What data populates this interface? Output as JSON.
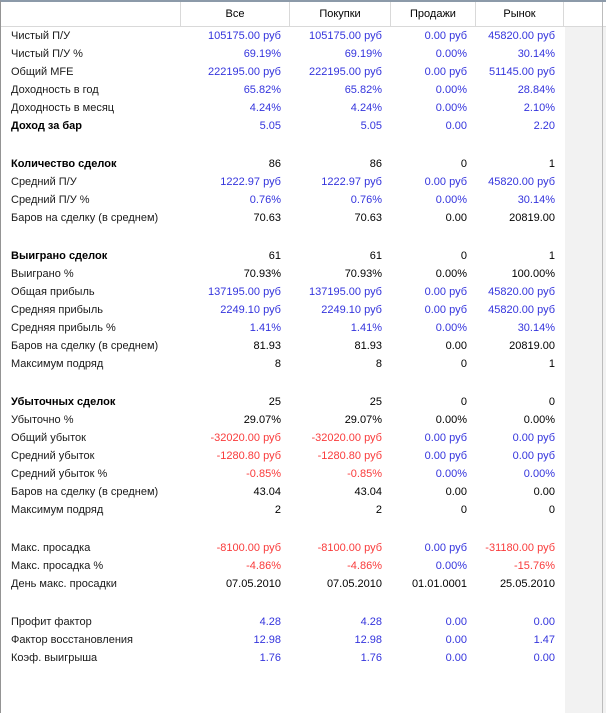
{
  "header": {
    "columns": [
      "Все",
      "Покупки",
      "Продажи",
      "Рынок"
    ]
  },
  "value_colors": {
    "b": "#3434dd",
    "r": "#f93b3b",
    "k": "#000000"
  },
  "sections": [
    {
      "rows": [
        {
          "label": "Чистый П/У",
          "bold": false,
          "values": [
            "105175.00 руб",
            "105175.00 руб",
            "0.00 руб",
            "45820.00 руб"
          ],
          "colors": [
            "b",
            "b",
            "b",
            "b"
          ]
        },
        {
          "label": "Чистый П/У %",
          "bold": false,
          "values": [
            "69.19%",
            "69.19%",
            "0.00%",
            "30.14%"
          ],
          "colors": [
            "b",
            "b",
            "b",
            "b"
          ]
        },
        {
          "label": "Общий MFE",
          "bold": false,
          "values": [
            "222195.00 руб",
            "222195.00 руб",
            "0.00 руб",
            "51145.00 руб"
          ],
          "colors": [
            "b",
            "b",
            "b",
            "b"
          ]
        },
        {
          "label": "Доходность в год",
          "bold": false,
          "values": [
            "65.82%",
            "65.82%",
            "0.00%",
            "28.84%"
          ],
          "colors": [
            "b",
            "b",
            "b",
            "b"
          ]
        },
        {
          "label": "Доходность в месяц",
          "bold": false,
          "values": [
            "4.24%",
            "4.24%",
            "0.00%",
            "2.10%"
          ],
          "colors": [
            "b",
            "b",
            "b",
            "b"
          ]
        },
        {
          "label": "Доход за бар",
          "bold": true,
          "values": [
            "5.05",
            "5.05",
            "0.00",
            "2.20"
          ],
          "colors": [
            "b",
            "b",
            "b",
            "b"
          ]
        }
      ]
    },
    {
      "rows": [
        {
          "label": "Количество сделок",
          "bold": true,
          "values": [
            "86",
            "86",
            "0",
            "1"
          ],
          "colors": [
            "k",
            "k",
            "k",
            "k"
          ]
        },
        {
          "label": "Средний П/У",
          "bold": false,
          "values": [
            "1222.97 руб",
            "1222.97 руб",
            "0.00 руб",
            "45820.00 руб"
          ],
          "colors": [
            "b",
            "b",
            "b",
            "b"
          ]
        },
        {
          "label": "Средний П/У %",
          "bold": false,
          "values": [
            "0.76%",
            "0.76%",
            "0.00%",
            "30.14%"
          ],
          "colors": [
            "b",
            "b",
            "b",
            "b"
          ]
        },
        {
          "label": "Баров на сделку (в среднем)",
          "bold": false,
          "values": [
            "70.63",
            "70.63",
            "0.00",
            "20819.00"
          ],
          "colors": [
            "k",
            "k",
            "k",
            "k"
          ]
        }
      ]
    },
    {
      "rows": [
        {
          "label": "Выиграно сделок",
          "bold": true,
          "values": [
            "61",
            "61",
            "0",
            "1"
          ],
          "colors": [
            "k",
            "k",
            "k",
            "k"
          ]
        },
        {
          "label": "Выиграно %",
          "bold": false,
          "values": [
            "70.93%",
            "70.93%",
            "0.00%",
            "100.00%"
          ],
          "colors": [
            "k",
            "k",
            "k",
            "k"
          ]
        },
        {
          "label": "Общая прибыль",
          "bold": false,
          "values": [
            "137195.00 руб",
            "137195.00 руб",
            "0.00 руб",
            "45820.00 руб"
          ],
          "colors": [
            "b",
            "b",
            "b",
            "b"
          ]
        },
        {
          "label": "Средняя прибыль",
          "bold": false,
          "values": [
            "2249.10 руб",
            "2249.10 руб",
            "0.00 руб",
            "45820.00 руб"
          ],
          "colors": [
            "b",
            "b",
            "b",
            "b"
          ]
        },
        {
          "label": "Средняя прибыль %",
          "bold": false,
          "values": [
            "1.41%",
            "1.41%",
            "0.00%",
            "30.14%"
          ],
          "colors": [
            "b",
            "b",
            "b",
            "b"
          ]
        },
        {
          "label": "Баров на сделку (в среднем)",
          "bold": false,
          "values": [
            "81.93",
            "81.93",
            "0.00",
            "20819.00"
          ],
          "colors": [
            "k",
            "k",
            "k",
            "k"
          ]
        },
        {
          "label": "Максимум подряд",
          "bold": false,
          "values": [
            "8",
            "8",
            "0",
            "1"
          ],
          "colors": [
            "k",
            "k",
            "k",
            "k"
          ]
        }
      ]
    },
    {
      "rows": [
        {
          "label": "Убыточных сделок",
          "bold": true,
          "values": [
            "25",
            "25",
            "0",
            "0"
          ],
          "colors": [
            "k",
            "k",
            "k",
            "k"
          ]
        },
        {
          "label": "Убыточно %",
          "bold": false,
          "values": [
            "29.07%",
            "29.07%",
            "0.00%",
            "0.00%"
          ],
          "colors": [
            "k",
            "k",
            "k",
            "k"
          ]
        },
        {
          "label": "Общий убыток",
          "bold": false,
          "values": [
            "-32020.00 руб",
            "-32020.00 руб",
            "0.00 руб",
            "0.00 руб"
          ],
          "colors": [
            "r",
            "r",
            "b",
            "b"
          ]
        },
        {
          "label": "Средний убыток",
          "bold": false,
          "values": [
            "-1280.80 руб",
            "-1280.80 руб",
            "0.00 руб",
            "0.00 руб"
          ],
          "colors": [
            "r",
            "r",
            "b",
            "b"
          ]
        },
        {
          "label": "Средний убыток %",
          "bold": false,
          "values": [
            "-0.85%",
            "-0.85%",
            "0.00%",
            "0.00%"
          ],
          "colors": [
            "r",
            "r",
            "b",
            "b"
          ]
        },
        {
          "label": "Баров на сделку (в среднем)",
          "bold": false,
          "values": [
            "43.04",
            "43.04",
            "0.00",
            "0.00"
          ],
          "colors": [
            "k",
            "k",
            "k",
            "k"
          ]
        },
        {
          "label": "Максимум подряд",
          "bold": false,
          "values": [
            "2",
            "2",
            "0",
            "0"
          ],
          "colors": [
            "k",
            "k",
            "k",
            "k"
          ]
        }
      ]
    },
    {
      "rows": [
        {
          "label": "Макс. просадка",
          "bold": false,
          "values": [
            "-8100.00 руб",
            "-8100.00 руб",
            "0.00 руб",
            "-31180.00 руб"
          ],
          "colors": [
            "r",
            "r",
            "b",
            "r"
          ]
        },
        {
          "label": "Макс. просадка %",
          "bold": false,
          "values": [
            "-4.86%",
            "-4.86%",
            "0.00%",
            "-15.76%"
          ],
          "colors": [
            "r",
            "r",
            "b",
            "r"
          ]
        },
        {
          "label": "День макс. просадки",
          "bold": false,
          "values": [
            "07.05.2010",
            "07.05.2010",
            "01.01.0001",
            "25.05.2010"
          ],
          "colors": [
            "k",
            "k",
            "k",
            "k"
          ]
        }
      ]
    },
    {
      "rows": [
        {
          "label": "Профит фактор",
          "bold": false,
          "values": [
            "4.28",
            "4.28",
            "0.00",
            "0.00"
          ],
          "colors": [
            "b",
            "b",
            "b",
            "b"
          ]
        },
        {
          "label": "Фактор восстановления",
          "bold": false,
          "values": [
            "12.98",
            "12.98",
            "0.00",
            "1.47"
          ],
          "colors": [
            "b",
            "b",
            "b",
            "b"
          ]
        },
        {
          "label": "Коэф. выигрыша",
          "bold": false,
          "values": [
            "1.76",
            "1.76",
            "0.00",
            "0.00"
          ],
          "colors": [
            "b",
            "b",
            "b",
            "b"
          ]
        }
      ]
    }
  ]
}
